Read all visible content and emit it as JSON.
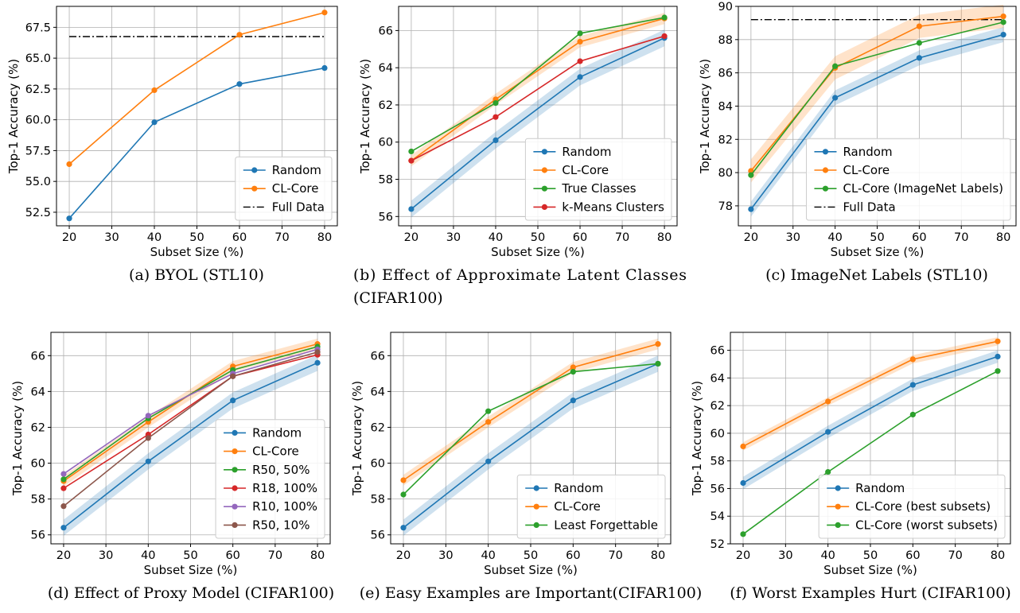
{
  "colors": {
    "Random": "#1f77b4",
    "CL-Core": "#ff7f0e",
    "green": "#2ca02c",
    "red": "#d62728",
    "purple": "#9467bd",
    "brown": "#8c564b",
    "fulldata": "#000000"
  },
  "chart_data": [
    {
      "id": "a",
      "type": "line",
      "caption": "(a)  BYOL (STL10)",
      "xlabel": "Subset Size (%)",
      "ylabel": "Top-1 Accuracy (%)",
      "x": [
        20,
        40,
        60,
        80
      ],
      "xlim": [
        17,
        83
      ],
      "ylim": [
        51.4,
        69.2
      ],
      "xticks": [
        20,
        30,
        40,
        50,
        60,
        70,
        80
      ],
      "yticks": [
        52.5,
        55.0,
        57.5,
        60.0,
        62.5,
        65.0,
        67.5
      ],
      "ytick_labels": [
        "52.5",
        "55.0",
        "57.5",
        "60.0",
        "62.5",
        "65.0",
        "67.5"
      ],
      "grid": true,
      "legend": "bottom-right",
      "series": [
        {
          "name": "Random",
          "color": "#1f77b4",
          "values": [
            52.0,
            59.8,
            62.9,
            64.2
          ]
        },
        {
          "name": "CL-Core",
          "color": "#ff7f0e",
          "values": [
            56.4,
            62.4,
            66.9,
            68.7
          ]
        }
      ],
      "hlines": [
        {
          "name": "Full Data",
          "y": 66.75,
          "color": "#000000",
          "dash": "dashdot"
        }
      ]
    },
    {
      "id": "b",
      "type": "line",
      "caption": "(b)  Effect of Approximate Latent Classes (CIFAR100)",
      "xlabel": "Subset Size (%)",
      "ylabel": "Top-1 Accuracy (%)",
      "x": [
        20,
        40,
        60,
        80
      ],
      "xlim": [
        17,
        83
      ],
      "ylim": [
        55.5,
        67.3
      ],
      "xticks": [
        20,
        30,
        40,
        50,
        60,
        70,
        80
      ],
      "yticks": [
        56,
        58,
        60,
        62,
        64,
        66
      ],
      "ytick_labels": [
        "56",
        "58",
        "60",
        "62",
        "64",
        "66"
      ],
      "grid": true,
      "legend": "bottom-right",
      "series": [
        {
          "name": "Random",
          "color": "#1f77b4",
          "values": [
            56.4,
            60.1,
            63.5,
            65.6
          ],
          "band": 0.45
        },
        {
          "name": "CL-Core",
          "color": "#ff7f0e",
          "values": [
            59.0,
            62.3,
            65.4,
            66.65
          ],
          "band": 0.3
        },
        {
          "name": "True Classes",
          "color": "#2ca02c",
          "values": [
            59.5,
            62.1,
            65.85,
            66.7
          ]
        },
        {
          "name": "k-Means Clusters",
          "color": "#d62728",
          "values": [
            59.0,
            61.35,
            64.35,
            65.7
          ]
        }
      ]
    },
    {
      "id": "c",
      "type": "line",
      "caption": "(c)  ImageNet Labels (STL10)",
      "xlabel": "Subset Size (%)",
      "ylabel": "Top-1 Accuracy (%)",
      "x": [
        20,
        40,
        60,
        80
      ],
      "xlim": [
        17,
        83
      ],
      "ylim": [
        76.8,
        90.0
      ],
      "xticks": [
        20,
        30,
        40,
        50,
        60,
        70,
        80
      ],
      "yticks": [
        78,
        80,
        82,
        84,
        86,
        88,
        90
      ],
      "ytick_labels": [
        "78",
        "80",
        "82",
        "84",
        "86",
        "88",
        "90"
      ],
      "grid": true,
      "legend": "bottom-right",
      "series": [
        {
          "name": "Random",
          "color": "#1f77b4",
          "values": [
            77.8,
            84.5,
            86.9,
            88.3
          ],
          "band": 0.45
        },
        {
          "name": "CL-Core",
          "color": "#ff7f0e",
          "values": [
            80.1,
            86.3,
            88.8,
            89.4
          ],
          "band": 0.7
        },
        {
          "name": "CL-Core (ImageNet Labels)",
          "color": "#2ca02c",
          "values": [
            79.85,
            86.4,
            87.8,
            89.05
          ]
        }
      ],
      "hlines": [
        {
          "name": "Full Data",
          "y": 89.2,
          "color": "#000000",
          "dash": "dashdot"
        }
      ]
    },
    {
      "id": "d",
      "type": "line",
      "caption": "(d)  Effect of Proxy Model (CIFAR100)",
      "xlabel": "Subset Size (%)",
      "ylabel": "Top-1 Accuracy (%)",
      "x": [
        20,
        40,
        60,
        80
      ],
      "xlim": [
        17,
        83
      ],
      "ylim": [
        55.5,
        67.3
      ],
      "xticks": [
        20,
        30,
        40,
        50,
        60,
        70,
        80
      ],
      "yticks": [
        56,
        58,
        60,
        62,
        64,
        66
      ],
      "ytick_labels": [
        "56",
        "58",
        "60",
        "62",
        "64",
        "66"
      ],
      "grid": true,
      "legend": "bottom-right",
      "series": [
        {
          "name": "Random",
          "color": "#1f77b4",
          "values": [
            56.4,
            60.1,
            63.5,
            65.6
          ],
          "band": 0.45
        },
        {
          "name": "CL-Core",
          "color": "#ff7f0e",
          "values": [
            59.0,
            62.3,
            65.4,
            66.65
          ],
          "band": 0.3
        },
        {
          "name": "R50, 50%",
          "color": "#2ca02c",
          "values": [
            59.1,
            62.5,
            65.2,
            66.5
          ]
        },
        {
          "name": "R18, 100%",
          "color": "#d62728",
          "values": [
            58.6,
            61.6,
            64.85,
            66.05
          ]
        },
        {
          "name": "R10, 100%",
          "color": "#9467bd",
          "values": [
            59.4,
            62.65,
            65.0,
            66.35
          ]
        },
        {
          "name": "R50, 10%",
          "color": "#8c564b",
          "values": [
            57.6,
            61.4,
            64.85,
            66.2
          ]
        }
      ]
    },
    {
      "id": "e",
      "type": "line",
      "caption": "(e)  Easy Examples are Important(CIFAR100)",
      "xlabel": "Subset Size (%)",
      "ylabel": "Top-1 Accuracy (%)",
      "x": [
        20,
        40,
        60,
        80
      ],
      "xlim": [
        17,
        83
      ],
      "ylim": [
        55.5,
        67.3
      ],
      "xticks": [
        20,
        30,
        40,
        50,
        60,
        70,
        80
      ],
      "yticks": [
        56,
        58,
        60,
        62,
        64,
        66
      ],
      "ytick_labels": [
        "56",
        "58",
        "60",
        "62",
        "64",
        "66"
      ],
      "grid": true,
      "legend": "bottom-right",
      "series": [
        {
          "name": "Random",
          "color": "#1f77b4",
          "values": [
            56.4,
            60.1,
            63.5,
            65.55
          ],
          "band": 0.45
        },
        {
          "name": "CL-Core",
          "color": "#ff7f0e",
          "values": [
            59.05,
            62.3,
            65.35,
            66.65
          ],
          "band": 0.3
        },
        {
          "name": "Least Forgettable",
          "color": "#2ca02c",
          "values": [
            58.25,
            62.9,
            65.1,
            65.55
          ]
        }
      ]
    },
    {
      "id": "f",
      "type": "line",
      "caption": "(f)  Worst Examples Hurt (CIFAR100)",
      "xlabel": "Subset Size (%)",
      "ylabel": "Top-1 Accuracy (%)",
      "x": [
        20,
        40,
        60,
        80
      ],
      "xlim": [
        17,
        83
      ],
      "ylim": [
        52.0,
        67.3
      ],
      "xticks": [
        20,
        30,
        40,
        50,
        60,
        70,
        80
      ],
      "yticks": [
        52,
        54,
        56,
        58,
        60,
        62,
        64,
        66
      ],
      "ytick_labels": [
        "52",
        "54",
        "56",
        "58",
        "60",
        "62",
        "64",
        "66"
      ],
      "grid": true,
      "legend": "bottom-right",
      "series": [
        {
          "name": "Random",
          "color": "#1f77b4",
          "values": [
            56.4,
            60.1,
            63.5,
            65.55
          ],
          "band": 0.45
        },
        {
          "name": "CL-Core (best subsets)",
          "color": "#ff7f0e",
          "values": [
            59.05,
            62.3,
            65.35,
            66.65
          ],
          "band": 0.3
        },
        {
          "name": "CL-Core (worst subsets)",
          "color": "#2ca02c",
          "values": [
            52.7,
            57.2,
            61.35,
            64.5
          ]
        }
      ]
    }
  ]
}
